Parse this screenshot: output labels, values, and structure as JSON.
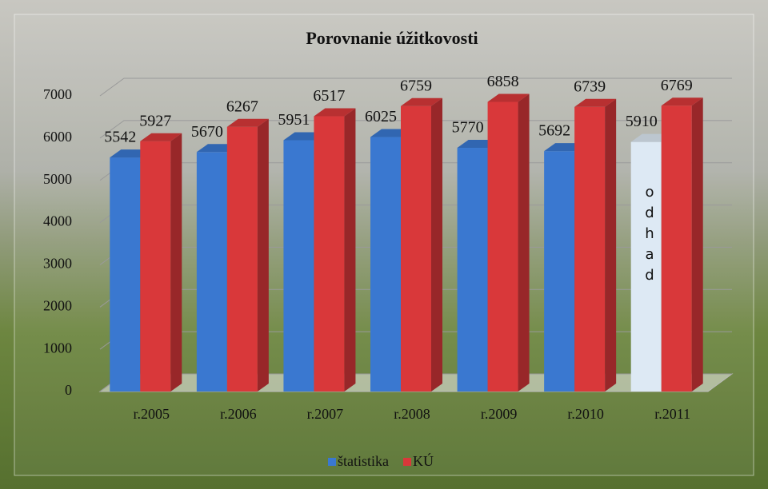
{
  "chart_data": {
    "type": "bar3d",
    "title": "Porovnanie úžitkovosti",
    "categories": [
      "r.2005",
      "r.2006",
      "r.2007",
      "r.2008",
      "r.2009",
      "r.2010",
      "r.2011"
    ],
    "series": [
      {
        "name": "štatistika",
        "color": "#3a78d0",
        "colors": [
          "#3a78d0",
          "#3a78d0",
          "#3a78d0",
          "#3a78d0",
          "#3a78d0",
          "#3a78d0",
          "#dde9f4"
        ],
        "values": [
          5542,
          5670,
          5951,
          6025,
          5770,
          5692,
          5910
        ]
      },
      {
        "name": "KÚ",
        "color": "#d9383a",
        "values": [
          5927,
          6267,
          6517,
          6759,
          6858,
          6739,
          6769
        ]
      }
    ],
    "annotation": "odhad",
    "ylim": [
      0,
      7000
    ],
    "yticks": [
      0,
      1000,
      2000,
      3000,
      4000,
      5000,
      6000,
      7000
    ],
    "grid": true,
    "legend": "bottom"
  }
}
